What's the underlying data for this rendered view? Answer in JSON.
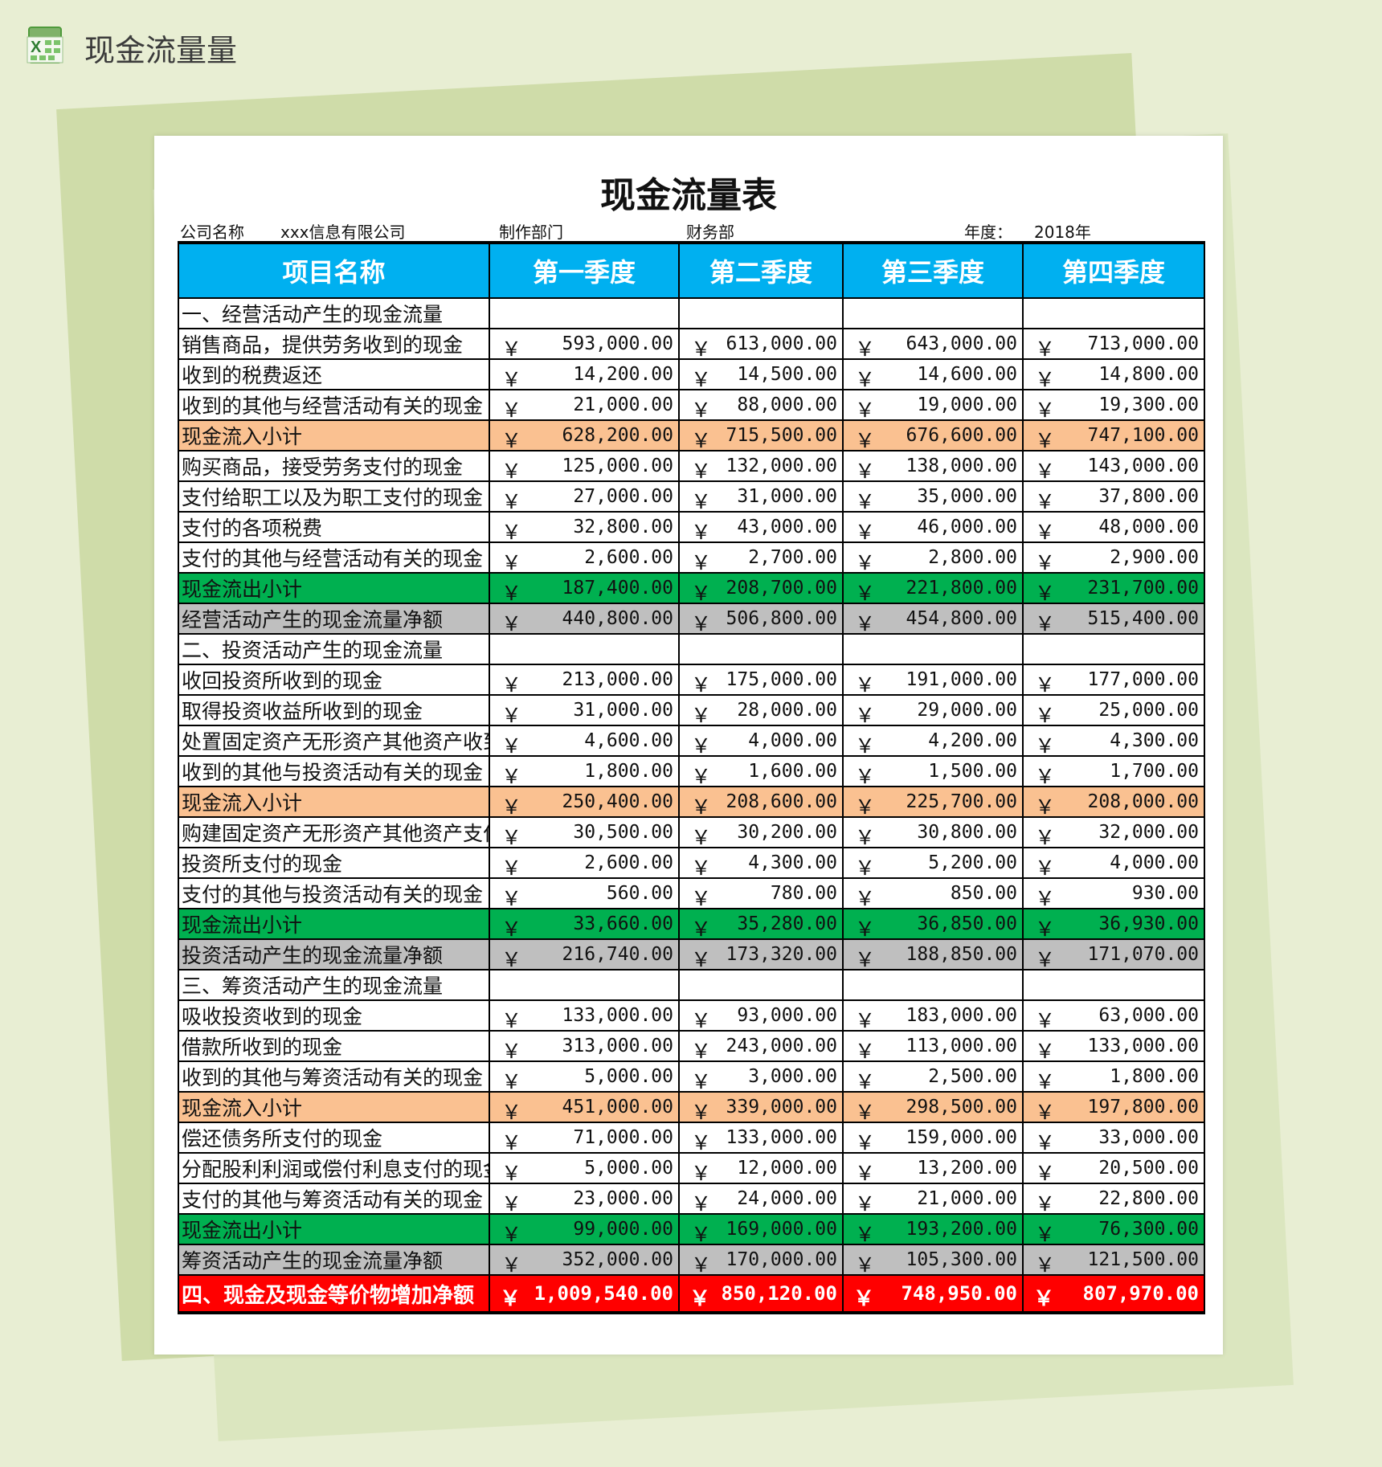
{
  "app": {
    "title": "现金流量量",
    "icon": "excel-icon"
  },
  "sheet": {
    "title": "现金流量表",
    "company_label": "公司名称",
    "company": "xxx信息有限公司",
    "dept_label": "制作部门",
    "dept": "财务部",
    "year_label": "年度：",
    "year": "2018年",
    "currency": "￥",
    "headers": [
      "项目名称",
      "第一季度",
      "第二季度",
      "第三季度",
      "第四季度"
    ],
    "colors": {
      "header": "#00b0f0",
      "inflow": "#fac191",
      "outflow": "#00b050",
      "net": "#bfbfbf",
      "total": "#ff0000"
    },
    "rows": [
      {
        "type": "section",
        "name": "一、经营活动产生的现金流量",
        "values": []
      },
      {
        "type": "item",
        "name": "销售商品，提供劳务收到的现金",
        "values": [
          "593,000.00",
          "613,000.00",
          "643,000.00",
          "713,000.00"
        ]
      },
      {
        "type": "item",
        "name": "收到的税费返还",
        "values": [
          "14,200.00",
          "14,500.00",
          "14,600.00",
          "14,800.00"
        ]
      },
      {
        "type": "item",
        "name": "收到的其他与经营活动有关的现金",
        "values": [
          "21,000.00",
          "88,000.00",
          "19,000.00",
          "19,300.00"
        ]
      },
      {
        "type": "inflow",
        "name": "现金流入小计",
        "values": [
          "628,200.00",
          "715,500.00",
          "676,600.00",
          "747,100.00"
        ]
      },
      {
        "type": "item",
        "name": "购买商品，接受劳务支付的现金",
        "values": [
          "125,000.00",
          "132,000.00",
          "138,000.00",
          "143,000.00"
        ]
      },
      {
        "type": "item",
        "name": "支付给职工以及为职工支付的现金",
        "values": [
          "27,000.00",
          "31,000.00",
          "35,000.00",
          "37,800.00"
        ]
      },
      {
        "type": "item",
        "name": "支付的各项税费",
        "values": [
          "32,800.00",
          "43,000.00",
          "46,000.00",
          "48,000.00"
        ]
      },
      {
        "type": "item",
        "name": "支付的其他与经营活动有关的现金",
        "values": [
          "2,600.00",
          "2,700.00",
          "2,800.00",
          "2,900.00"
        ]
      },
      {
        "type": "outflow",
        "name": "现金流出小计",
        "values": [
          "187,400.00",
          "208,700.00",
          "221,800.00",
          "231,700.00"
        ]
      },
      {
        "type": "net",
        "name": "经营活动产生的现金流量净额",
        "values": [
          "440,800.00",
          "506,800.00",
          "454,800.00",
          "515,400.00"
        ]
      },
      {
        "type": "section",
        "name": "二、投资活动产生的现金流量",
        "values": []
      },
      {
        "type": "item",
        "name": "收回投资所收到的现金",
        "values": [
          "213,000.00",
          "175,000.00",
          "191,000.00",
          "177,000.00"
        ]
      },
      {
        "type": "item",
        "name": "取得投资收益所收到的现金",
        "values": [
          "31,000.00",
          "28,000.00",
          "29,000.00",
          "25,000.00"
        ]
      },
      {
        "type": "item",
        "name": "处置固定资产无形资产其他资产收到的",
        "values": [
          "4,600.00",
          "4,000.00",
          "4,200.00",
          "4,300.00"
        ]
      },
      {
        "type": "item",
        "name": "收到的其他与投资活动有关的现金",
        "values": [
          "1,800.00",
          "1,600.00",
          "1,500.00",
          "1,700.00"
        ]
      },
      {
        "type": "inflow",
        "name": "现金流入小计",
        "values": [
          "250,400.00",
          "208,600.00",
          "225,700.00",
          "208,000.00"
        ]
      },
      {
        "type": "item",
        "name": "购建固定资产无形资产其他资产支付的",
        "values": [
          "30,500.00",
          "30,200.00",
          "30,800.00",
          "32,000.00"
        ]
      },
      {
        "type": "item",
        "name": "投资所支付的现金",
        "values": [
          "2,600.00",
          "4,300.00",
          "5,200.00",
          "4,000.00"
        ]
      },
      {
        "type": "item",
        "name": "支付的其他与投资活动有关的现金",
        "values": [
          "560.00",
          "780.00",
          "850.00",
          "930.00"
        ]
      },
      {
        "type": "outflow",
        "name": "现金流出小计",
        "values": [
          "33,660.00",
          "35,280.00",
          "36,850.00",
          "36,930.00"
        ]
      },
      {
        "type": "net",
        "name": "投资活动产生的现金流量净额",
        "values": [
          "216,740.00",
          "173,320.00",
          "188,850.00",
          "171,070.00"
        ]
      },
      {
        "type": "section",
        "name": "三、筹资活动产生的现金流量",
        "values": []
      },
      {
        "type": "item",
        "name": "吸收投资收到的现金",
        "values": [
          "133,000.00",
          "93,000.00",
          "183,000.00",
          "63,000.00"
        ]
      },
      {
        "type": "item",
        "name": "借款所收到的现金",
        "values": [
          "313,000.00",
          "243,000.00",
          "113,000.00",
          "133,000.00"
        ]
      },
      {
        "type": "item",
        "name": "收到的其他与筹资活动有关的现金",
        "values": [
          "5,000.00",
          "3,000.00",
          "2,500.00",
          "1,800.00"
        ]
      },
      {
        "type": "inflow",
        "name": "现金流入小计",
        "values": [
          "451,000.00",
          "339,000.00",
          "298,500.00",
          "197,800.00"
        ]
      },
      {
        "type": "item",
        "name": "偿还债务所支付的现金",
        "values": [
          "71,000.00",
          "133,000.00",
          "159,000.00",
          "33,000.00"
        ]
      },
      {
        "type": "item",
        "name": "分配股利利润或偿付利息支付的现金",
        "values": [
          "5,000.00",
          "12,000.00",
          "13,200.00",
          "20,500.00"
        ]
      },
      {
        "type": "item",
        "name": "支付的其他与筹资活动有关的现金",
        "values": [
          "23,000.00",
          "24,000.00",
          "21,000.00",
          "22,800.00"
        ]
      },
      {
        "type": "outflow",
        "name": "现金流出小计",
        "values": [
          "99,000.00",
          "169,000.00",
          "193,200.00",
          "76,300.00"
        ]
      },
      {
        "type": "net",
        "name": "筹资活动产生的现金流量净额",
        "values": [
          "352,000.00",
          "170,000.00",
          "105,300.00",
          "121,500.00"
        ]
      },
      {
        "type": "total",
        "name": "四、现金及现金等价物增加净额",
        "values": [
          "1,009,540.00",
          "850,120.00",
          "748,950.00",
          "807,970.00"
        ]
      }
    ]
  }
}
